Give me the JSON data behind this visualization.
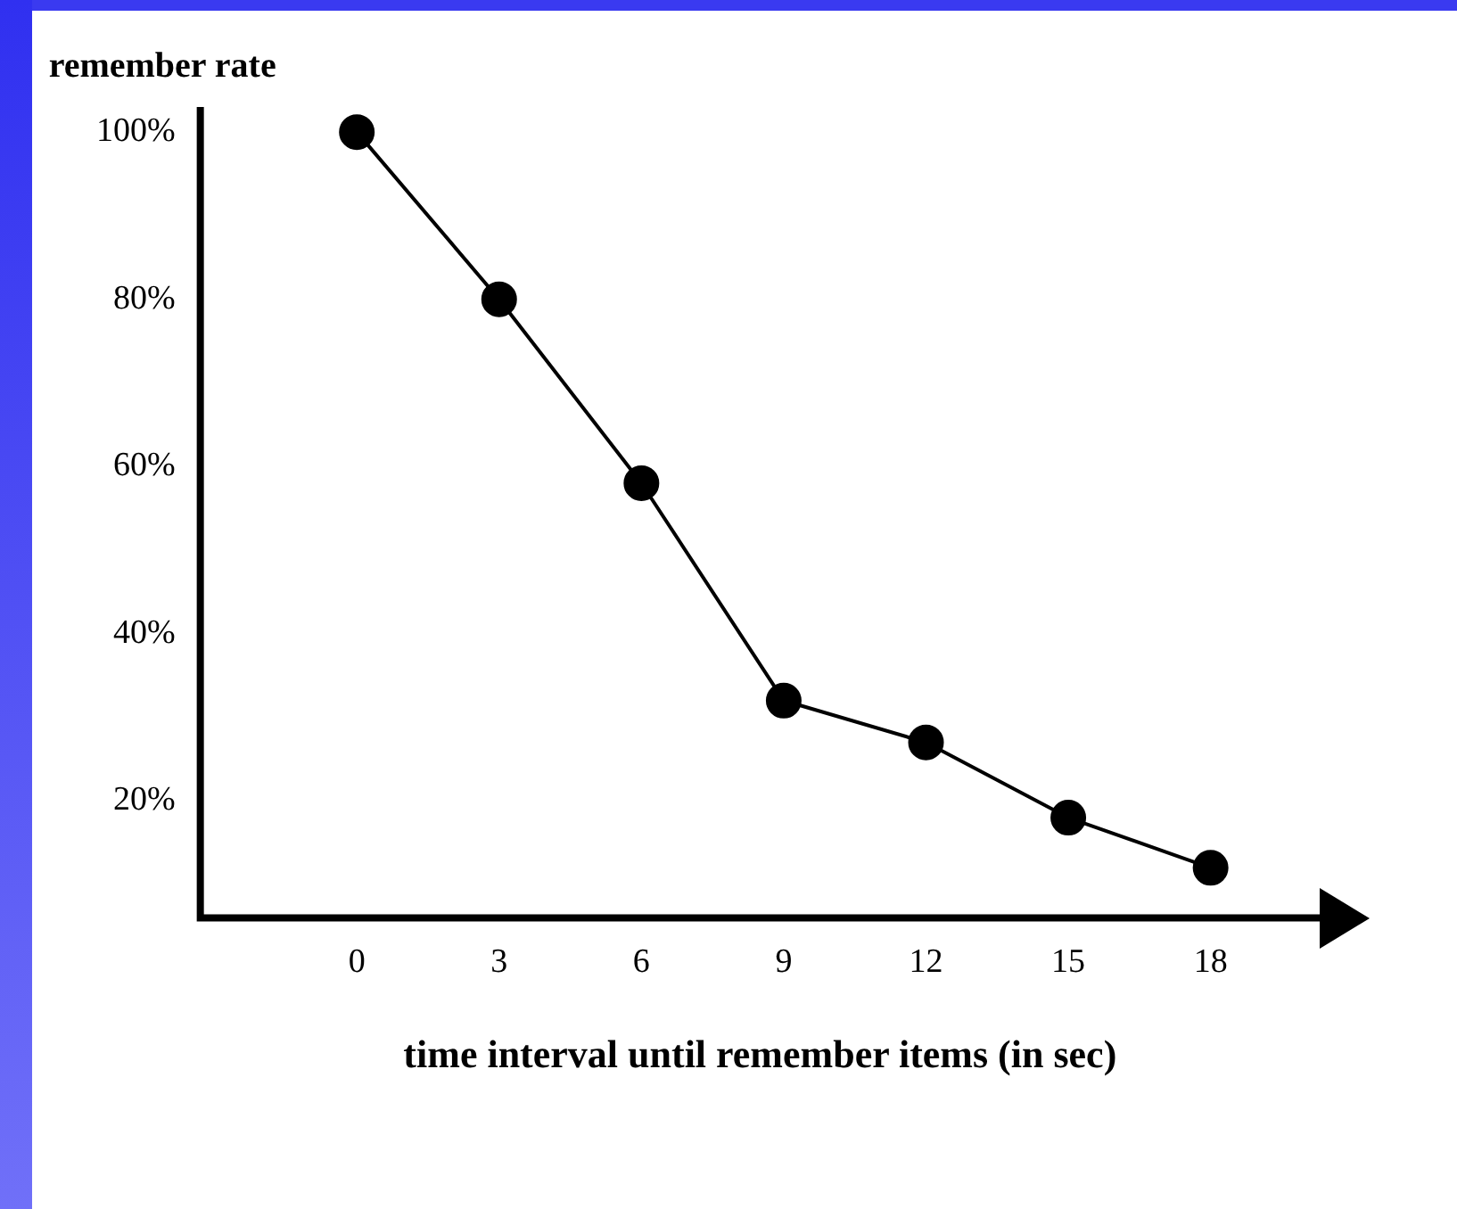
{
  "chart_data": {
    "type": "line",
    "xlabel": "time interval until remember items (in sec)",
    "ylabel": "remember rate",
    "x": [
      0,
      3,
      6,
      9,
      12,
      15,
      18
    ],
    "series": [
      {
        "color": "#000000",
        "values": [
          100,
          80,
          58,
          32,
          27,
          18,
          12
        ]
      }
    ],
    "xlim": [
      -3.3,
      20.3
    ],
    "xticks": [
      0,
      3,
      6,
      9,
      12,
      15,
      18
    ],
    "ylim": [
      6,
      103
    ],
    "yticks": [
      {
        "value": 20,
        "label": "20%"
      },
      {
        "value": 40,
        "label": "40%"
      },
      {
        "value": 60,
        "label": "60%"
      },
      {
        "value": 80,
        "label": "80%"
      },
      {
        "value": 100,
        "label": "100%"
      }
    ],
    "grid": false,
    "legend": false,
    "marker": "circle",
    "line_style": "solid"
  }
}
